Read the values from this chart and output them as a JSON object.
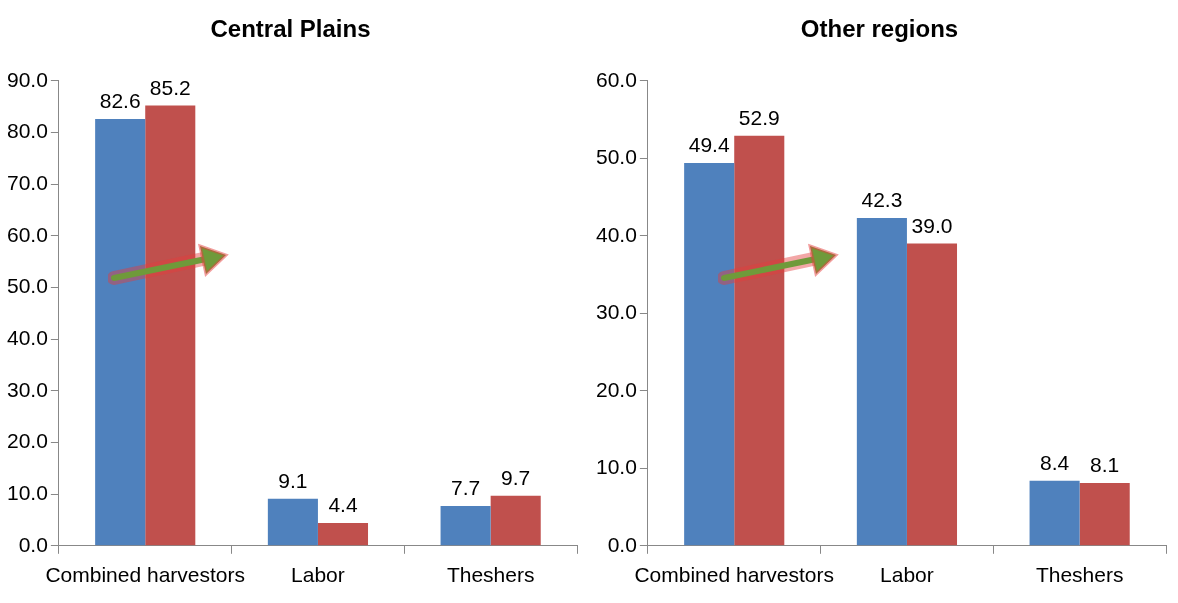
{
  "chart_data": [
    {
      "type": "bar",
      "title": "Central Plains",
      "categories": [
        "Combined harvestors",
        "Labor",
        "Theshers"
      ],
      "series": [
        {
          "color": "#4f81bd",
          "values": [
            82.6,
            9.1,
            7.7
          ],
          "value_labels": [
            "82.6",
            "9.1",
            "7.7"
          ]
        },
        {
          "color": "#c0504d",
          "values": [
            85.2,
            4.4,
            9.7
          ],
          "value_labels": [
            "85.2",
            "4.4",
            "9.7"
          ]
        }
      ],
      "ylim": [
        0,
        90
      ],
      "yticks": [
        {
          "value": 0,
          "label": "0.0"
        },
        {
          "value": 10,
          "label": "10.0"
        },
        {
          "value": 20,
          "label": "20.0"
        },
        {
          "value": 30,
          "label": "30.0"
        },
        {
          "value": 40,
          "label": "40.0"
        },
        {
          "value": 50,
          "label": "50.0"
        },
        {
          "value": 60,
          "label": "60.0"
        },
        {
          "value": 70,
          "label": "70.0"
        },
        {
          "value": 80,
          "label": "80.0"
        },
        {
          "value": 90,
          "label": "90.0"
        }
      ],
      "grid": false,
      "legend": false
    },
    {
      "type": "bar",
      "title": "Other regions",
      "categories": [
        "Combined harvestors",
        "Labor",
        "Theshers"
      ],
      "series": [
        {
          "color": "#4f81bd",
          "values": [
            49.4,
            42.3,
            8.4
          ],
          "value_labels": [
            "49.4",
            "42.3",
            "8.4"
          ]
        },
        {
          "color": "#c0504d",
          "values": [
            52.9,
            39.0,
            8.1
          ],
          "value_labels": [
            "52.9",
            "39.0",
            "8.1"
          ]
        }
      ],
      "ylim": [
        0,
        60
      ],
      "yticks": [
        {
          "value": 0,
          "label": "0.0"
        },
        {
          "value": 10,
          "label": "10.0"
        },
        {
          "value": 20,
          "label": "20.0"
        },
        {
          "value": 30,
          "label": "30.0"
        },
        {
          "value": 40,
          "label": "40.0"
        },
        {
          "value": 50,
          "label": "50.0"
        },
        {
          "value": 60,
          "label": "60.0"
        }
      ],
      "grid": false,
      "legend": false
    }
  ]
}
